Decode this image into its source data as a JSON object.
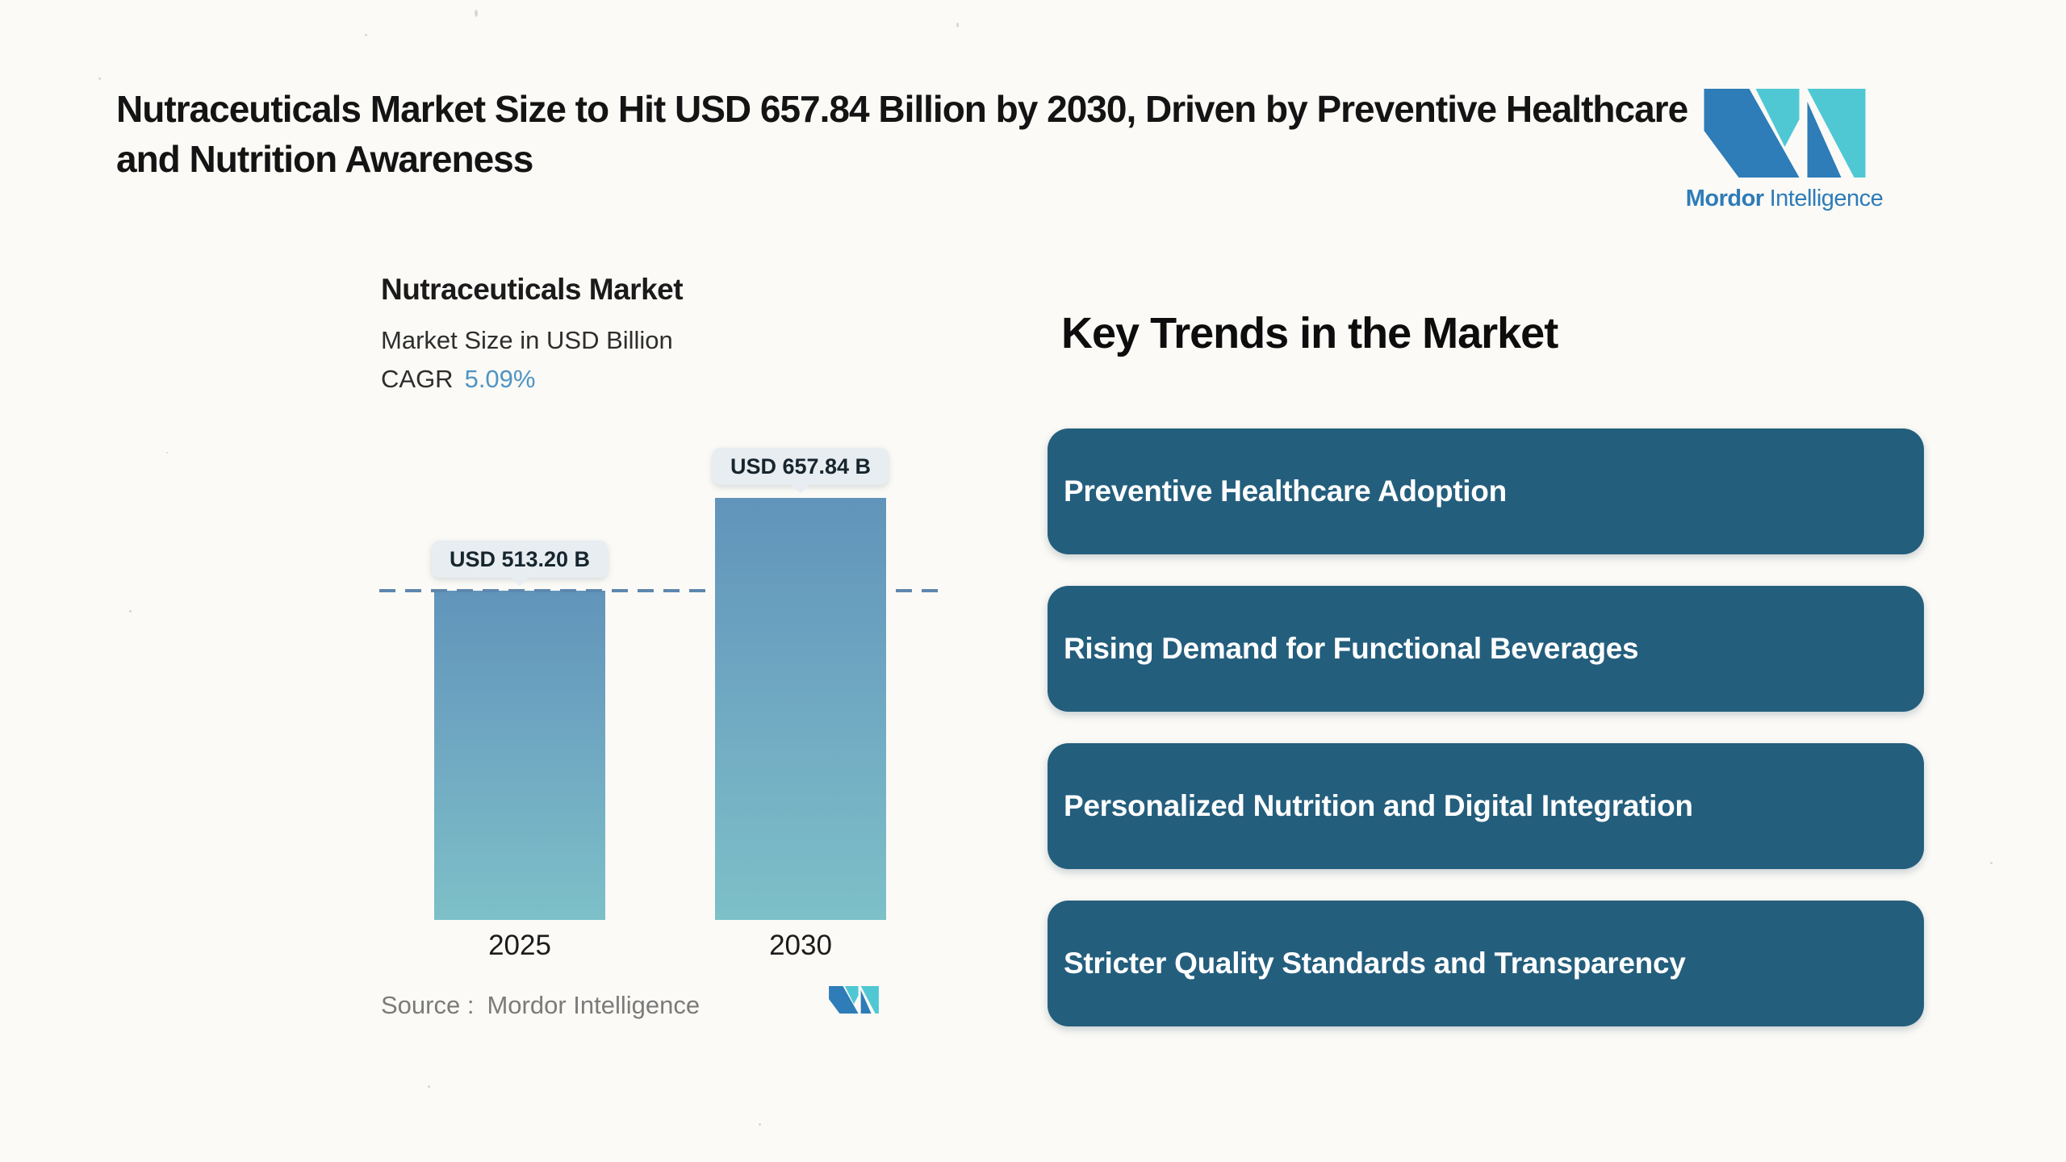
{
  "colors": {
    "brand_blue": "#2e7cb8",
    "brand_teal": "#4fc8d4",
    "pill_bg": "#245e7d",
    "pill_text": "#ffffff",
    "bar_top": "#6194ba",
    "bar_bottom": "#7dc0c8",
    "dashed_line": "#5d87ae",
    "cagr_accent": "#4f94c4",
    "bubble_bg": "#e7edf0",
    "text_dark": "#141414",
    "text_gray": "#7b7b7b",
    "background": "#fbfaf6"
  },
  "header": {
    "title": "Nutraceuticals Market Size to Hit USD 657.84 Billion by 2030, Driven by Preventive Healthcare and Nutrition Awareness"
  },
  "brand": {
    "name_bold": "Mordor",
    "name_regular": "Intelligence"
  },
  "chart_data": {
    "type": "bar",
    "title": "Nutraceuticals Market",
    "subtitle": "Market Size in USD Billion",
    "cagr_label": "CAGR",
    "cagr_value": "5.09%",
    "categories": [
      "2025",
      "2030"
    ],
    "values": [
      513.2,
      657.84
    ],
    "value_labels": [
      "USD 513.20 B",
      "USD 657.84 B"
    ],
    "unit": "USD Billion",
    "reference_line_value": 513.2,
    "ylim": [
      0,
      660
    ],
    "grid": false,
    "legend": false,
    "source_label": "Source :",
    "source_value": "Mordor Intelligence"
  },
  "trends": {
    "heading": "Key Trends in the Market",
    "items": [
      "Preventive Healthcare Adoption",
      "Rising Demand for Functional Beverages",
      "Personalized Nutrition and Digital Integration",
      "Stricter Quality Standards and Transparency"
    ]
  }
}
